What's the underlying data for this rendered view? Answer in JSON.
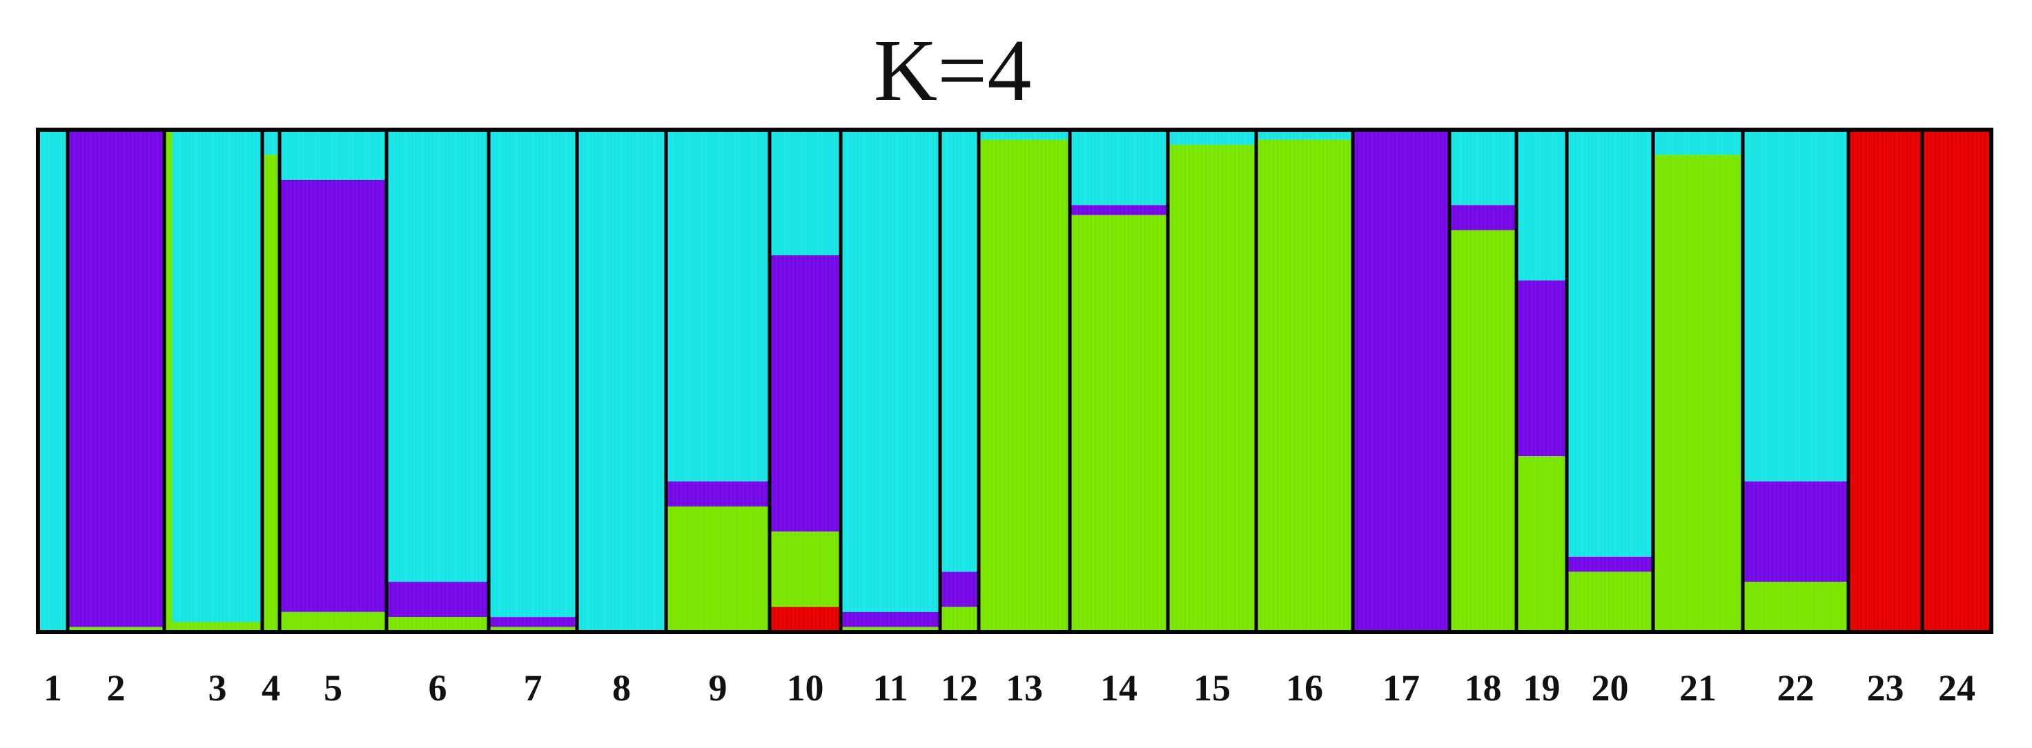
{
  "chart_data": {
    "type": "bar",
    "subtype": "stacked-admixture",
    "title": "K=4",
    "xlabel": "",
    "ylabel": "",
    "ylim": [
      0,
      1
    ],
    "grid": false,
    "legend": "none",
    "categories": [
      "1",
      "2",
      "3",
      "4",
      "5",
      "6",
      "7",
      "8",
      "9",
      "10",
      "11",
      "12",
      "13",
      "14",
      "15",
      "16",
      "17",
      "18",
      "19",
      "20",
      "21",
      "22",
      "23",
      "24"
    ],
    "series": [
      {
        "color": "#18e6e6",
        "values": [
          1.0,
          0.0,
          0.98,
          0.05,
          0.1,
          0.9,
          0.97,
          1.0,
          0.7,
          0.25,
          0.96,
          0.88,
          0.02,
          0.15,
          0.03,
          0.02,
          0.0,
          0.15,
          0.3,
          0.85,
          0.05,
          0.7,
          0.0,
          0.0
        ]
      },
      {
        "color": "#7508e8",
        "values": [
          0.0,
          0.99,
          0.0,
          0.0,
          0.86,
          0.07,
          0.02,
          0.0,
          0.05,
          0.55,
          0.03,
          0.07,
          0.0,
          0.02,
          0.0,
          0.0,
          1.0,
          0.05,
          0.35,
          0.03,
          0.0,
          0.2,
          0.0,
          0.0
        ]
      },
      {
        "color": "#7ae600",
        "values": [
          0.0,
          0.01,
          0.02,
          0.95,
          0.04,
          0.03,
          0.01,
          0.0,
          0.25,
          0.15,
          0.01,
          0.05,
          0.98,
          0.83,
          0.97,
          0.98,
          0.0,
          0.8,
          0.35,
          0.12,
          0.95,
          0.1,
          0.0,
          0.0
        ]
      },
      {
        "color": "#e80000",
        "values": [
          0.0,
          0.0,
          0.0,
          0.0,
          0.0,
          0.0,
          0.0,
          0.0,
          0.0,
          0.05,
          0.0,
          0.0,
          0.0,
          0.0,
          0.0,
          0.0,
          0.0,
          0.0,
          0.0,
          0.0,
          0.0,
          0.0,
          1.0,
          1.0
        ]
      }
    ]
  }
}
